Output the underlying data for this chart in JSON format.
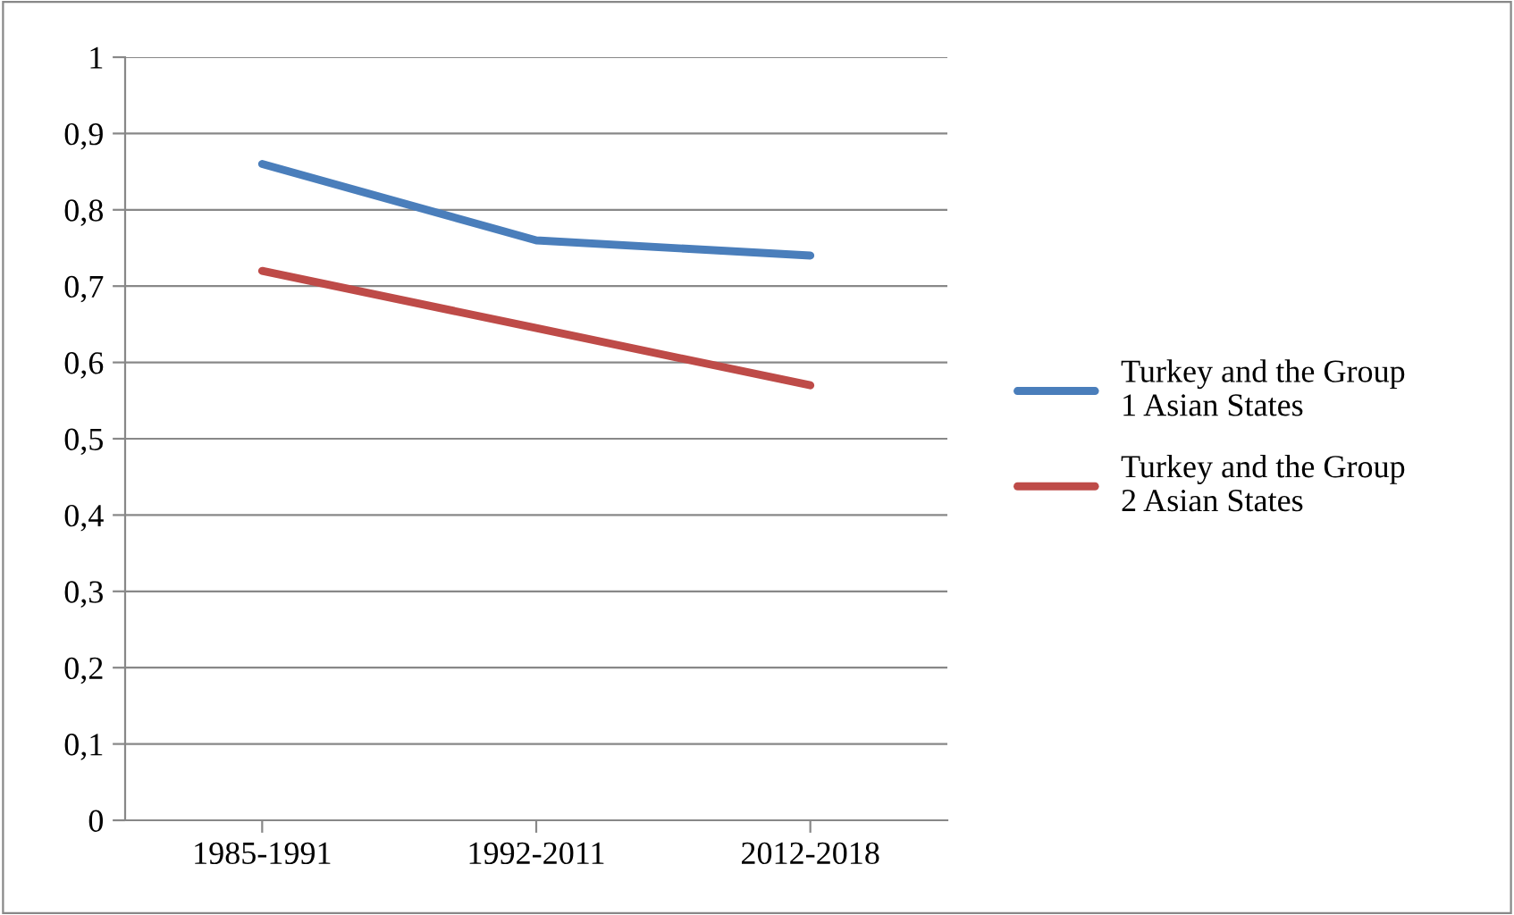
{
  "chart_data": {
    "type": "line",
    "categories": [
      "1985-1991",
      "1992-2011",
      "2012-2018"
    ],
    "series": [
      {
        "name": "Turkey and the Group 1 Asian States",
        "color": "#4a7ebb",
        "values": [
          0.86,
          0.76,
          0.74
        ]
      },
      {
        "name": "Turkey and the Group 2 Asian States",
        "color": "#be4b48",
        "values": [
          0.72,
          0.645,
          0.57
        ]
      }
    ],
    "ylim": [
      0,
      1
    ],
    "yticks": [
      {
        "value": 0,
        "label": "0"
      },
      {
        "value": 0.1,
        "label": "0,1"
      },
      {
        "value": 0.2,
        "label": "0,2"
      },
      {
        "value": 0.3,
        "label": "0,3"
      },
      {
        "value": 0.4,
        "label": "0,4"
      },
      {
        "value": 0.5,
        "label": "0,5"
      },
      {
        "value": 0.6,
        "label": "0,6"
      },
      {
        "value": 0.7,
        "label": "0,7"
      },
      {
        "value": 0.8,
        "label": "0,8"
      },
      {
        "value": 0.9,
        "label": "0,9"
      },
      {
        "value": 1,
        "label": "1"
      }
    ],
    "grid": "y",
    "legend": "right",
    "marker": "none",
    "line_style": "solid"
  }
}
